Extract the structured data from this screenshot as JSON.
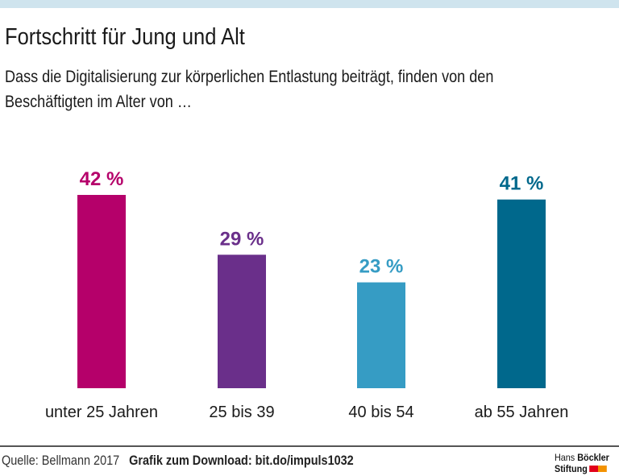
{
  "title": "Fortschritt für Jung und Alt",
  "subtitle": "Dass die Digitalisierung zur körperlichen Entlastung beiträgt, finden von den Beschäftigten im Alter von …",
  "footer": {
    "source": "Quelle: Bellmann 2017",
    "download": "Grafik zum Download: bit.do/impuls1032",
    "logo_line1_a": "Hans",
    "logo_line1_b": "Böckler",
    "logo_line2": "Stiftung"
  },
  "chart_data": {
    "type": "bar",
    "title": "Fortschritt für Jung und Alt",
    "categories": [
      "unter 25 Jahren",
      "25 bis 39",
      "40 bis 54",
      "ab 55 Jahren"
    ],
    "values": [
      42,
      29,
      23,
      41
    ],
    "labels": [
      "42 %",
      "29 %",
      "23 %",
      "41 %"
    ],
    "unit": "%",
    "colors": [
      "#b5006a",
      "#6a2f8a",
      "#369cc4",
      "#00688c"
    ],
    "ylim": [
      0,
      42
    ],
    "grid": false
  }
}
